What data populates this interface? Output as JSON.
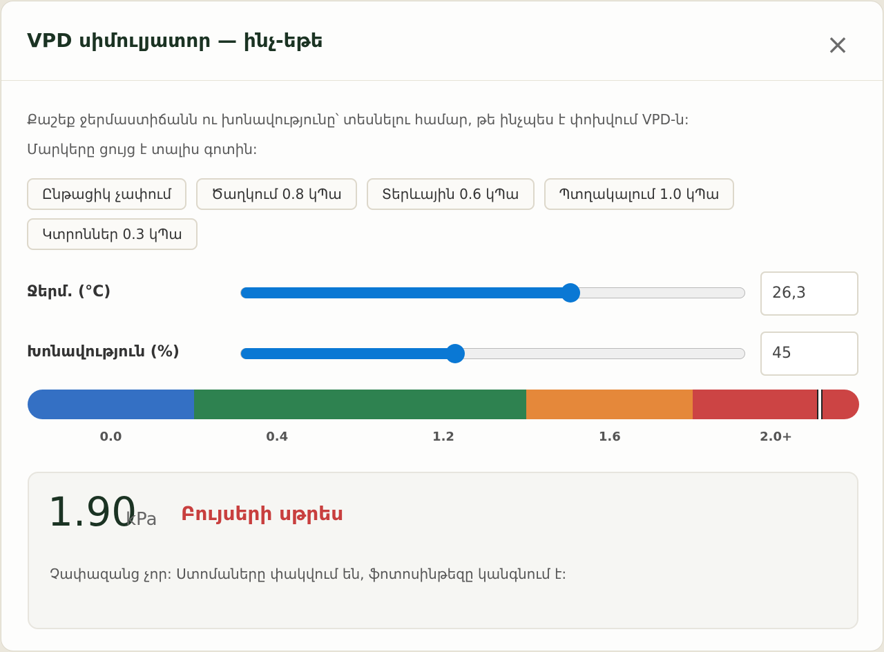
{
  "header": {
    "title": "VPD սիմուլյատոր — ինչ-եթե",
    "close": "×"
  },
  "description": [
    "Քաշեք ջերմաստիճանն ու խոնավությունը՝ տեսնելու համար, թե ինչպես է փոխվում VPD-ն:",
    "Մարկերը ցույց է տալիս գոտին:"
  ],
  "presets": [
    "Ընթացիկ չափում",
    "Ծաղկում 0.8 կՊա",
    "Տերևային 0.6 կՊա",
    "Պտղակալում 1.0 կՊա",
    "Կտրոններ 0.3 կՊա"
  ],
  "controls": [
    {
      "label": "Ջերմ. (°C)",
      "value": "26,3"
    },
    {
      "label": "Խոնավություն (%)",
      "value": "45"
    }
  ],
  "scale": {
    "labels": [
      "0.0",
      "0.4",
      "1.2",
      "1.6",
      "2.0+"
    ],
    "zones": [
      {
        "color": "#3470c4"
      },
      {
        "color": "#2e8250"
      },
      {
        "color": "#e5883a"
      },
      {
        "color": "#cc4444"
      }
    ]
  },
  "result": {
    "value": "1.90",
    "unit": "kPa",
    "status": "Բույսերի սթրես",
    "description": "Չափազանց չոր: Ստոմաները փակվում են, ֆոտոսինթեզը կանգնում է:"
  }
}
